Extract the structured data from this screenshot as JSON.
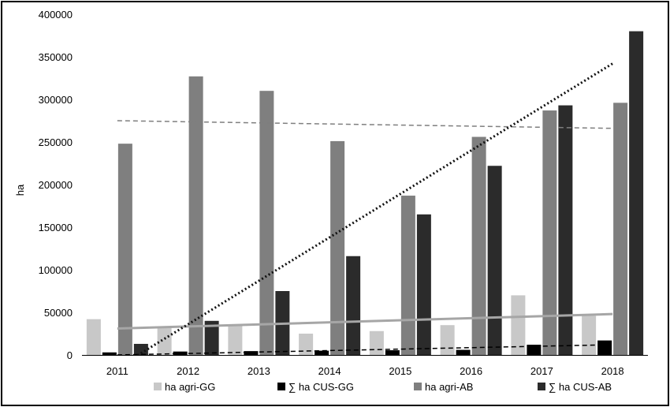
{
  "chart_data": {
    "type": "bar",
    "title": "",
    "xlabel": "",
    "ylabel": "ha",
    "ylim": [
      0,
      400000
    ],
    "yticks": [
      "0",
      "50000",
      "100000",
      "150000",
      "200000",
      "250000",
      "300000",
      "350000",
      "400000"
    ],
    "ytick_values": [
      0,
      50000,
      100000,
      150000,
      200000,
      250000,
      300000,
      350000,
      400000
    ],
    "categories": [
      "2011",
      "2012",
      "2013",
      "2014",
      "2015",
      "2016",
      "2017",
      "2018"
    ],
    "grid": false,
    "legend_position": "bottom",
    "series": [
      {
        "name": "ha agri-GG",
        "color": "#c8c8c8",
        "values": [
          42000,
          33000,
          35000,
          25000,
          28000,
          35000,
          70000,
          46000
        ]
      },
      {
        "name": "∑ ha CUS-GG",
        "color": "#000000",
        "values": [
          3000,
          4000,
          4500,
          5000,
          5500,
          6000,
          12000,
          17000
        ]
      },
      {
        "name": "ha agri-AB",
        "color": "#7f7f7f",
        "values": [
          248000,
          327000,
          310000,
          251000,
          187000,
          256000,
          287000,
          296000
        ]
      },
      {
        "name": "∑ ha CUS-AB",
        "color": "#2b2b2b",
        "values": [
          13000,
          40000,
          75000,
          116000,
          165000,
          222000,
          293000,
          380000
        ]
      }
    ],
    "trendlines": [
      {
        "series": "ha agri-GG",
        "type": "linear",
        "style": "solid",
        "color": "#a6a6a6",
        "start": 31000,
        "end": 48000
      },
      {
        "series": "∑ ha CUS-GG",
        "type": "linear",
        "style": "dashed",
        "color": "#000000",
        "start": 0,
        "end": 12000
      },
      {
        "series": "ha agri-AB",
        "type": "linear",
        "style": "dashed",
        "color": "#7f7f7f",
        "start": 275000,
        "end": 266000
      },
      {
        "series": "∑ ha CUS-AB",
        "type": "linear",
        "style": "dotted",
        "color": "#111111",
        "start": -15000,
        "end": 342000
      }
    ]
  }
}
